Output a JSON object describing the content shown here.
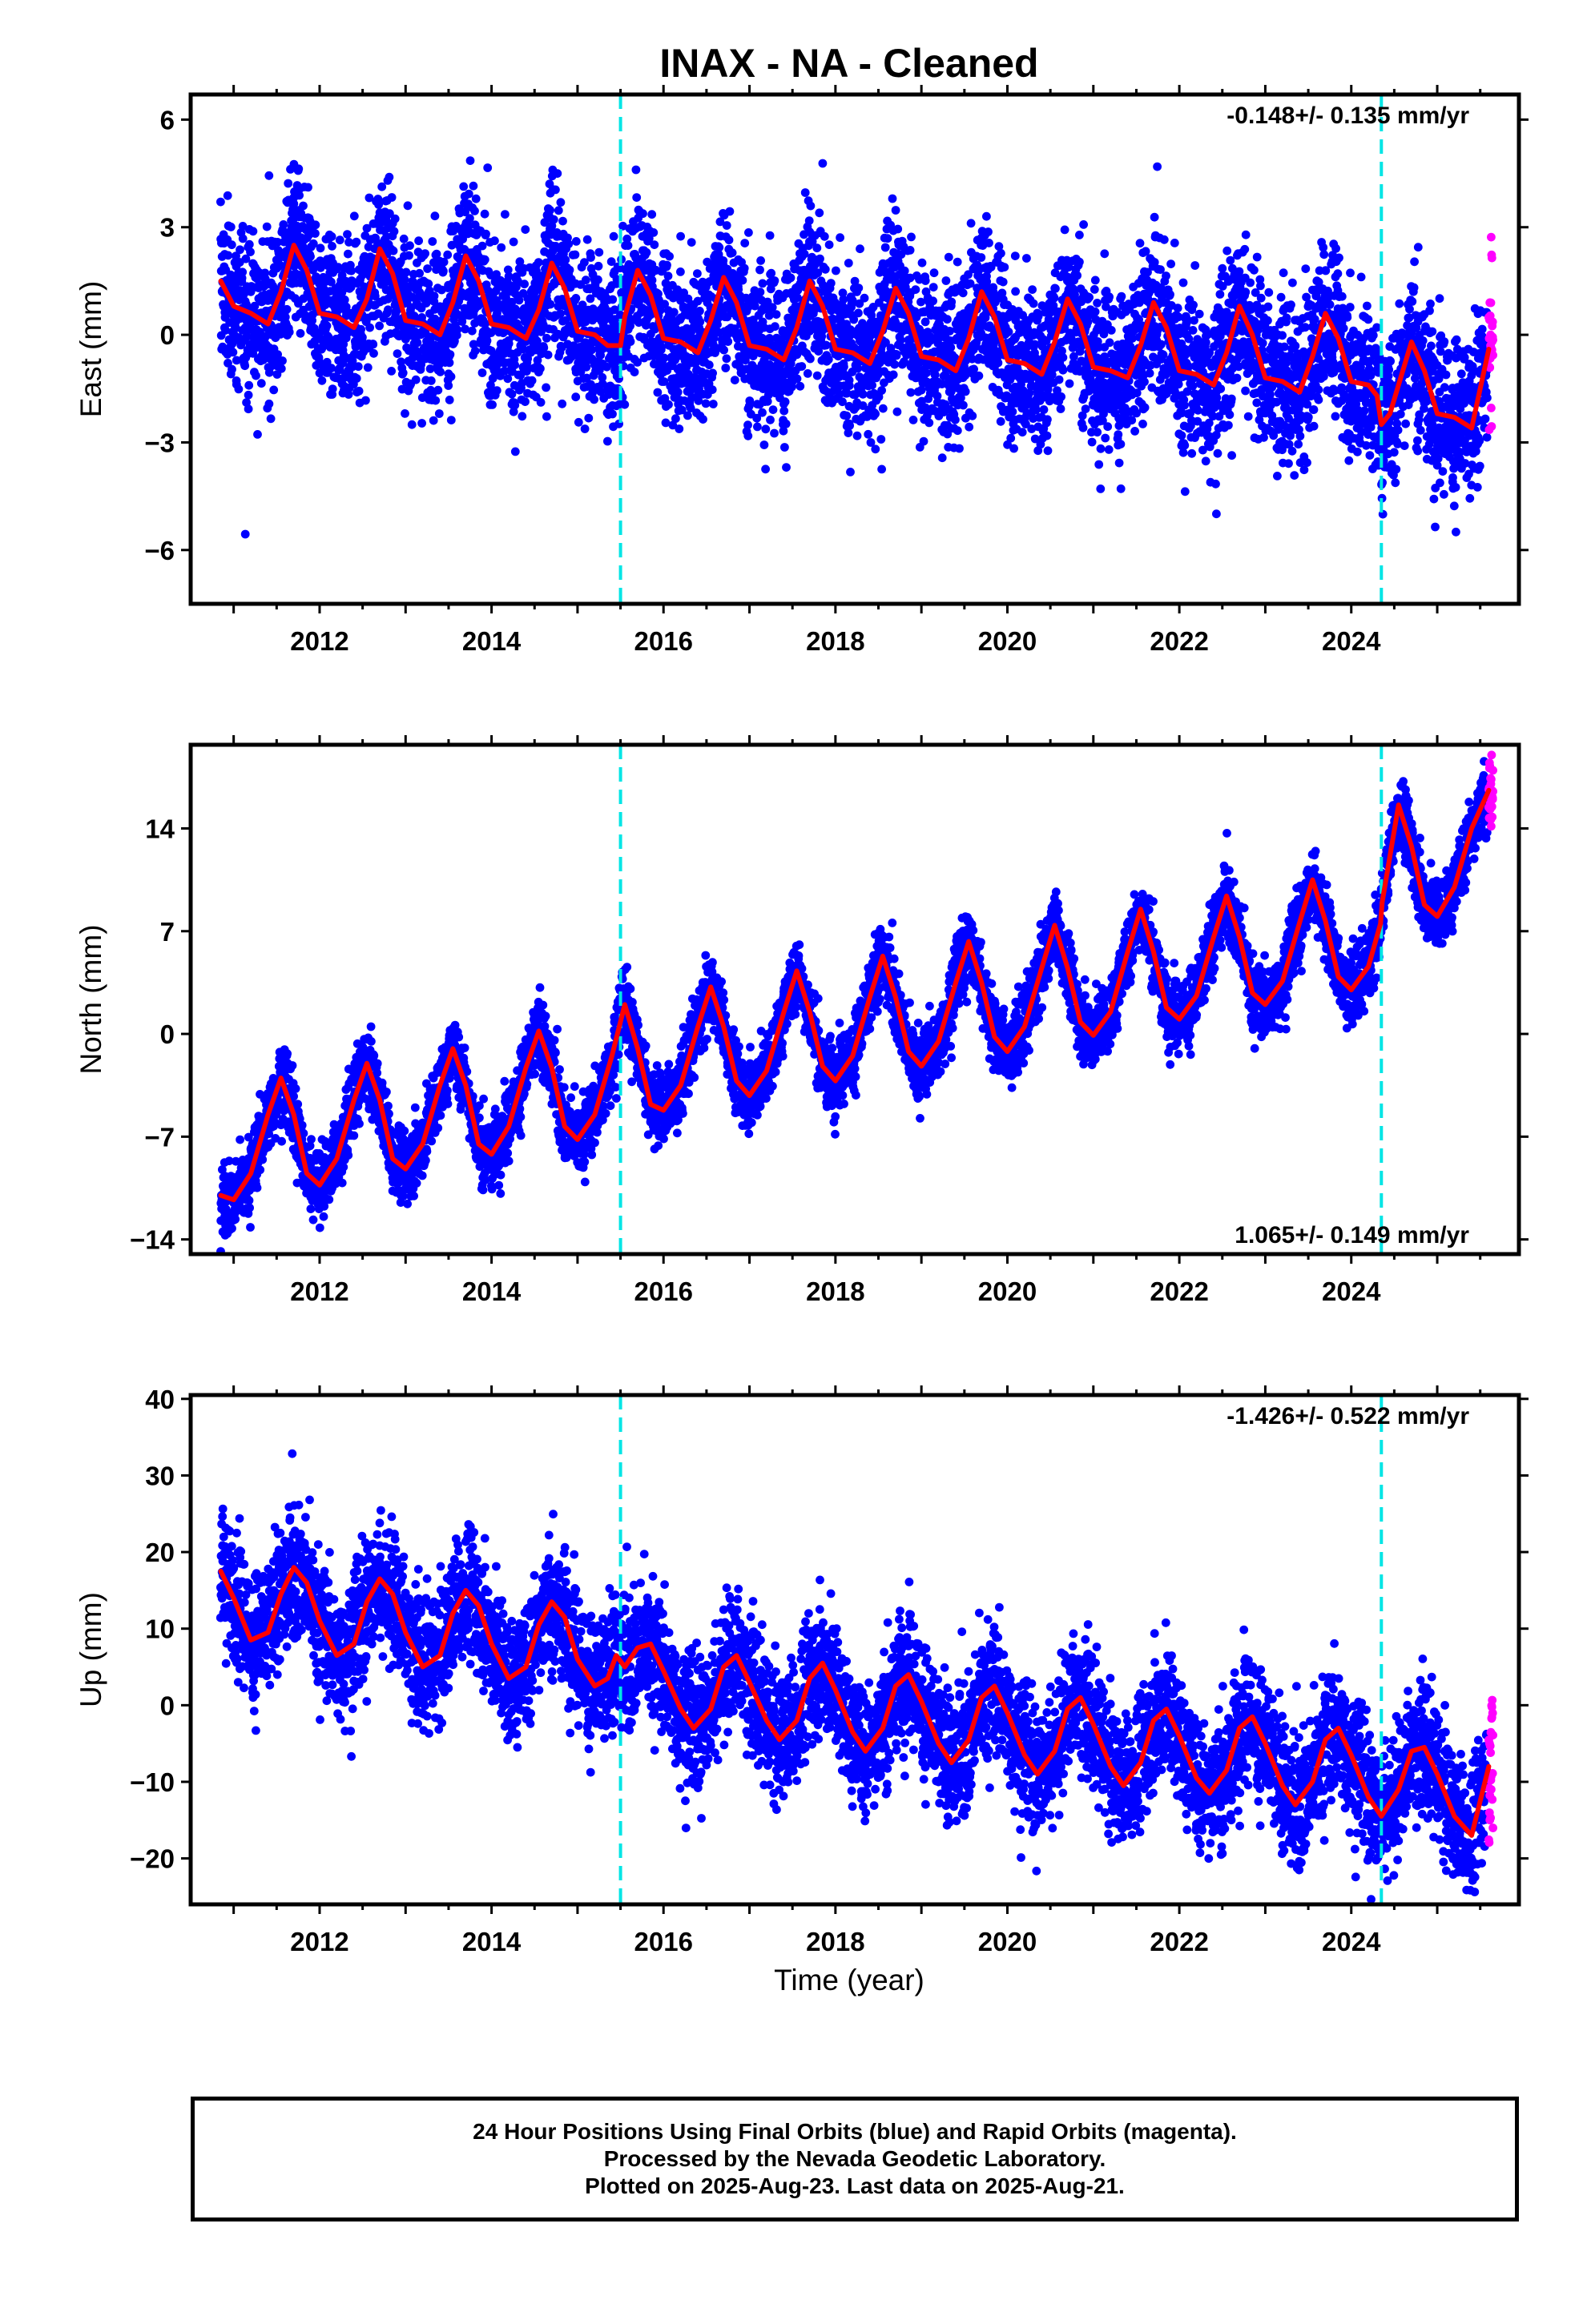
{
  "title": "INAX  - NA - Cleaned",
  "xlabel": "Time (year)",
  "colors": {
    "final": "#0000ff",
    "rapid": "#ff00ff",
    "model": "#ff0000",
    "step": "#00e5e5"
  },
  "chart_data": [
    {
      "type": "scatter",
      "component": "East",
      "ylabel": "East (mm)",
      "xlim": [
        2010.5,
        2025.95
      ],
      "ylim": [
        -7.5,
        6.7
      ],
      "yticks": [
        6,
        3,
        0,
        -3,
        -6
      ],
      "xticks": [
        2012,
        2014,
        2016,
        2018,
        2020,
        2022,
        2024
      ],
      "steps": [
        2015.5,
        2024.35
      ],
      "rate": "-0.148+/- 0.135 mm/yr",
      "rate_position": "top-right",
      "model": {
        "x": [
          2010.85,
          2011.0,
          2011.2,
          2011.4,
          2011.55,
          2011.7,
          2011.85,
          2012.0,
          2012.2,
          2012.4,
          2012.55,
          2012.7,
          2012.85,
          2013.0,
          2013.2,
          2013.4,
          2013.55,
          2013.7,
          2013.85,
          2014.0,
          2014.2,
          2014.4,
          2014.55,
          2014.7,
          2014.85,
          2015.0,
          2015.2,
          2015.35,
          2015.5,
          2015.55,
          2015.7,
          2015.85,
          2016.0,
          2016.2,
          2016.4,
          2016.55,
          2016.7,
          2016.85,
          2017.0,
          2017.2,
          2017.4,
          2017.55,
          2017.7,
          2017.85,
          2018.0,
          2018.2,
          2018.4,
          2018.55,
          2018.7,
          2018.85,
          2019.0,
          2019.2,
          2019.4,
          2019.55,
          2019.7,
          2019.85,
          2020.0,
          2020.2,
          2020.4,
          2020.55,
          2020.7,
          2020.85,
          2021.0,
          2021.2,
          2021.4,
          2021.55,
          2021.7,
          2021.85,
          2022.0,
          2022.2,
          2022.4,
          2022.55,
          2022.7,
          2022.85,
          2023.0,
          2023.2,
          2023.4,
          2023.55,
          2023.7,
          2023.85,
          2024.0,
          2024.2,
          2024.3,
          2024.35,
          2024.45,
          2024.6,
          2024.7,
          2024.85,
          2025.0,
          2025.2,
          2025.4,
          2025.6
        ],
        "y": [
          1.5,
          0.8,
          0.6,
          0.3,
          1.2,
          2.5,
          1.8,
          0.6,
          0.5,
          0.2,
          1.0,
          2.4,
          1.7,
          0.4,
          0.3,
          0.0,
          0.9,
          2.2,
          1.5,
          0.3,
          0.2,
          -0.1,
          0.7,
          2.0,
          1.3,
          0.1,
          0.0,
          -0.3,
          -0.3,
          0.5,
          1.8,
          1.1,
          -0.1,
          -0.2,
          -0.5,
          0.4,
          1.6,
          0.9,
          -0.3,
          -0.4,
          -0.7,
          0.2,
          1.5,
          0.8,
          -0.4,
          -0.5,
          -0.8,
          0.1,
          1.3,
          0.6,
          -0.6,
          -0.7,
          -1.0,
          -0.1,
          1.2,
          0.5,
          -0.7,
          -0.8,
          -1.1,
          -0.2,
          1.0,
          0.3,
          -0.9,
          -1.0,
          -1.2,
          -0.3,
          0.9,
          0.2,
          -1.0,
          -1.1,
          -1.4,
          -0.5,
          0.8,
          0.0,
          -1.2,
          -1.3,
          -1.6,
          -0.6,
          0.6,
          -0.1,
          -1.3,
          -1.4,
          -1.7,
          -2.5,
          -2.2,
          -1.0,
          -0.2,
          -1.0,
          -2.2,
          -2.3,
          -2.6,
          -0.4
        ]
      }
    },
    {
      "type": "scatter",
      "component": "North",
      "ylabel": "North (mm)",
      "xlim": [
        2010.5,
        2025.95
      ],
      "ylim": [
        -15.0,
        19.7
      ],
      "yticks": [
        14,
        7,
        0,
        -7,
        -14
      ],
      "xticks": [
        2012,
        2014,
        2016,
        2018,
        2020,
        2022,
        2024
      ],
      "steps": [
        2015.5,
        2024.35
      ],
      "rate": "1.065+/- 0.149 mm/yr",
      "rate_position": "bottom-right",
      "model": {
        "x": [
          2010.85,
          2011.0,
          2011.2,
          2011.4,
          2011.55,
          2011.7,
          2011.85,
          2012.0,
          2012.2,
          2012.4,
          2012.55,
          2012.7,
          2012.85,
          2013.0,
          2013.2,
          2013.4,
          2013.55,
          2013.7,
          2013.85,
          2014.0,
          2014.2,
          2014.4,
          2014.55,
          2014.7,
          2014.85,
          2015.0,
          2015.2,
          2015.4,
          2015.55,
          2015.7,
          2015.85,
          2016.0,
          2016.2,
          2016.4,
          2016.55,
          2016.7,
          2016.85,
          2017.0,
          2017.2,
          2017.4,
          2017.55,
          2017.7,
          2017.85,
          2018.0,
          2018.2,
          2018.4,
          2018.55,
          2018.7,
          2018.85,
          2019.0,
          2019.2,
          2019.4,
          2019.55,
          2019.7,
          2019.85,
          2020.0,
          2020.2,
          2020.4,
          2020.55,
          2020.7,
          2020.85,
          2021.0,
          2021.2,
          2021.4,
          2021.55,
          2021.7,
          2021.85,
          2022.0,
          2022.2,
          2022.4,
          2022.55,
          2022.7,
          2022.85,
          2023.0,
          2023.2,
          2023.4,
          2023.55,
          2023.7,
          2023.85,
          2024.0,
          2024.2,
          2024.34,
          2024.36,
          2024.55,
          2024.7,
          2024.85,
          2025.0,
          2025.2,
          2025.4,
          2025.6
        ],
        "y": [
          -11.0,
          -11.3,
          -9.5,
          -5.5,
          -3.0,
          -5.5,
          -9.5,
          -10.3,
          -8.5,
          -4.5,
          -2.0,
          -4.5,
          -8.5,
          -9.2,
          -7.5,
          -3.5,
          -1.0,
          -3.5,
          -7.5,
          -8.2,
          -6.3,
          -2.3,
          0.2,
          -2.3,
          -6.3,
          -7.2,
          -5.5,
          -1.5,
          2.0,
          -1.0,
          -4.8,
          -5.2,
          -3.5,
          0.5,
          3.2,
          0.5,
          -3.2,
          -4.2,
          -2.5,
          1.5,
          4.3,
          1.5,
          -2.2,
          -3.2,
          -1.5,
          2.5,
          5.3,
          2.5,
          -1.2,
          -2.2,
          -0.5,
          3.5,
          6.3,
          3.5,
          -0.2,
          -1.2,
          0.5,
          4.5,
          7.4,
          4.5,
          0.8,
          -0.1,
          1.5,
          5.6,
          8.5,
          5.6,
          1.8,
          1.0,
          2.6,
          6.6,
          9.4,
          6.6,
          2.8,
          2.0,
          3.6,
          7.6,
          10.5,
          7.7,
          3.9,
          3.0,
          4.6,
          7.5,
          9.0,
          15.6,
          12.8,
          8.8,
          8.0,
          10.0,
          14.0,
          16.6
        ]
      }
    },
    {
      "type": "scatter",
      "component": "Up",
      "ylabel": "Up (mm)",
      "xlim": [
        2010.5,
        2025.95
      ],
      "ylim": [
        -26.0,
        40.5
      ],
      "yticks": [
        40,
        30,
        20,
        10,
        0,
        -10,
        -20
      ],
      "xticks": [
        2012,
        2014,
        2016,
        2018,
        2020,
        2022,
        2024
      ],
      "steps": [
        2015.5,
        2024.35
      ],
      "rate": "-1.426+/- 0.522 mm/yr",
      "rate_position": "top-right",
      "model": {
        "x": [
          2010.85,
          2011.0,
          2011.2,
          2011.4,
          2011.55,
          2011.7,
          2011.85,
          2012.0,
          2012.2,
          2012.4,
          2012.55,
          2012.7,
          2012.85,
          2013.0,
          2013.2,
          2013.4,
          2013.55,
          2013.7,
          2013.85,
          2014.0,
          2014.2,
          2014.4,
          2014.55,
          2014.7,
          2014.85,
          2015.0,
          2015.2,
          2015.35,
          2015.45,
          2015.55,
          2015.7,
          2015.85,
          2016.0,
          2016.2,
          2016.35,
          2016.55,
          2016.7,
          2016.85,
          2017.0,
          2017.2,
          2017.35,
          2017.55,
          2017.7,
          2017.85,
          2018.0,
          2018.2,
          2018.35,
          2018.55,
          2018.7,
          2018.85,
          2019.0,
          2019.2,
          2019.35,
          2019.55,
          2019.7,
          2019.85,
          2020.0,
          2020.2,
          2020.35,
          2020.55,
          2020.7,
          2020.85,
          2021.0,
          2021.2,
          2021.35,
          2021.55,
          2021.7,
          2021.85,
          2022.0,
          2022.2,
          2022.35,
          2022.55,
          2022.7,
          2022.85,
          2023.0,
          2023.2,
          2023.35,
          2023.55,
          2023.7,
          2023.85,
          2024.0,
          2024.2,
          2024.35,
          2024.55,
          2024.7,
          2024.85,
          2025.0,
          2025.2,
          2025.4,
          2025.6
        ],
        "y": [
          17.5,
          14.0,
          8.5,
          9.5,
          14.5,
          18.0,
          16.0,
          11.0,
          6.5,
          8.0,
          13.5,
          16.5,
          14.5,
          9.5,
          5.0,
          6.5,
          12.0,
          15.0,
          13.0,
          8.0,
          3.5,
          5.0,
          10.5,
          13.5,
          11.5,
          6.0,
          2.5,
          3.5,
          6.5,
          5.0,
          7.5,
          8.0,
          4.5,
          -0.5,
          -3.0,
          -0.5,
          5.0,
          6.5,
          3.0,
          -2.0,
          -4.5,
          -2.0,
          3.5,
          5.5,
          2.0,
          -3.5,
          -6.0,
          -3.0,
          2.5,
          4.0,
          0.5,
          -5.0,
          -7.5,
          -4.5,
          1.0,
          2.5,
          -1.0,
          -6.5,
          -9.0,
          -6.0,
          -0.5,
          1.0,
          -2.5,
          -8.0,
          -10.5,
          -7.5,
          -2.0,
          -0.5,
          -4.0,
          -9.5,
          -11.5,
          -8.5,
          -3.0,
          -1.5,
          -5.0,
          -10.5,
          -13.0,
          -10.0,
          -4.5,
          -3.0,
          -6.5,
          -12.0,
          -14.5,
          -11.0,
          -6.0,
          -5.5,
          -9.0,
          -14.5,
          -17.0,
          -8.0
        ]
      }
    }
  ],
  "footer": {
    "line1": "24 Hour Positions Using Final Orbits (blue) and Rapid Orbits (magenta).",
    "line2": "Processed by the Nevada Geodetic Laboratory.",
    "line3": "Plotted on 2025-Aug-23. Last data on 2025-Aug-21."
  }
}
